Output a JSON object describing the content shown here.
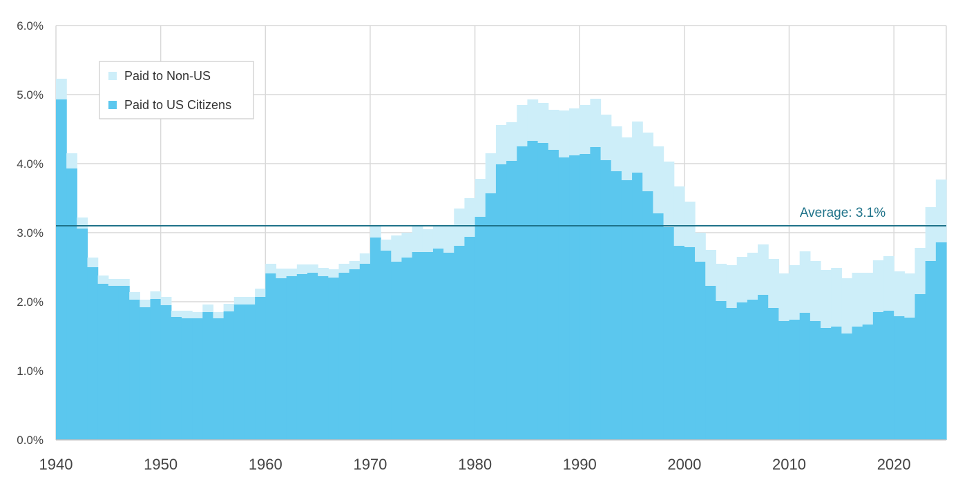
{
  "chart_data": {
    "type": "bar",
    "stacked": true,
    "x": [
      1940,
      1941,
      1942,
      1943,
      1944,
      1945,
      1946,
      1947,
      1948,
      1949,
      1950,
      1951,
      1952,
      1953,
      1954,
      1955,
      1956,
      1957,
      1958,
      1959,
      1960,
      1961,
      1962,
      1963,
      1964,
      1965,
      1966,
      1967,
      1968,
      1969,
      1970,
      1971,
      1972,
      1973,
      1974,
      1975,
      1976,
      1977,
      1978,
      1979,
      1980,
      1981,
      1982,
      1983,
      1984,
      1985,
      1986,
      1987,
      1988,
      1989,
      1990,
      1991,
      1992,
      1993,
      1994,
      1995,
      1996,
      1997,
      1998,
      1999,
      2000,
      2001,
      2002,
      2003,
      2004,
      2005,
      2006,
      2007,
      2008,
      2009,
      2010,
      2011,
      2012,
      2013,
      2014,
      2015,
      2016,
      2017,
      2018,
      2019,
      2020,
      2021,
      2022,
      2023,
      2024
    ],
    "series": [
      {
        "name": "Paid to US Citizens",
        "color": "#5bc7ee",
        "values": [
          4.93,
          3.93,
          3.06,
          2.5,
          2.26,
          2.23,
          2.23,
          2.03,
          1.92,
          2.04,
          1.95,
          1.78,
          1.76,
          1.76,
          1.85,
          1.76,
          1.86,
          1.96,
          1.96,
          2.07,
          2.41,
          2.34,
          2.37,
          2.4,
          2.42,
          2.37,
          2.35,
          2.42,
          2.47,
          2.55,
          2.93,
          2.74,
          2.58,
          2.64,
          2.72,
          2.72,
          2.77,
          2.71,
          2.81,
          2.94,
          3.23,
          3.57,
          3.99,
          4.04,
          4.25,
          4.33,
          4.3,
          4.2,
          4.09,
          4.12,
          4.14,
          4.24,
          4.05,
          3.89,
          3.76,
          3.87,
          3.6,
          3.28,
          3.08,
          2.81,
          2.79,
          2.58,
          2.23,
          2.01,
          1.91,
          1.99,
          2.03,
          2.1,
          1.91,
          1.72,
          1.74,
          1.84,
          1.72,
          1.62,
          1.64,
          1.54,
          1.64,
          1.67,
          1.85,
          1.87,
          1.79,
          1.77,
          2.11,
          2.59,
          2.86
        ]
      },
      {
        "name": "Paid to Non-US",
        "color": "#cdeef9",
        "values": [
          0.3,
          0.22,
          0.16,
          0.14,
          0.12,
          0.1,
          0.1,
          0.11,
          0.11,
          0.11,
          0.12,
          0.09,
          0.11,
          0.09,
          0.11,
          0.09,
          0.11,
          0.11,
          0.11,
          0.12,
          0.14,
          0.14,
          0.11,
          0.14,
          0.12,
          0.12,
          0.12,
          0.13,
          0.12,
          0.15,
          0.16,
          0.16,
          0.38,
          0.36,
          0.38,
          0.33,
          0.34,
          0.38,
          0.54,
          0.56,
          0.55,
          0.58,
          0.57,
          0.56,
          0.6,
          0.6,
          0.58,
          0.58,
          0.68,
          0.68,
          0.71,
          0.7,
          0.66,
          0.65,
          0.62,
          0.74,
          0.85,
          0.97,
          0.95,
          0.86,
          0.66,
          0.42,
          0.52,
          0.54,
          0.62,
          0.66,
          0.68,
          0.73,
          0.71,
          0.69,
          0.79,
          0.89,
          0.87,
          0.84,
          0.85,
          0.8,
          0.78,
          0.75,
          0.75,
          0.79,
          0.65,
          0.64,
          0.67,
          0.78,
          0.91
        ]
      }
    ],
    "average_line": {
      "value": 3.1,
      "label": "Average: 3.1%",
      "color": "#1e7289"
    },
    "ylim": [
      0,
      6
    ],
    "y_ticks": [
      "0.0%",
      "1.0%",
      "2.0%",
      "3.0%",
      "4.0%",
      "5.0%",
      "6.0%"
    ],
    "x_ticks": [
      "1940",
      "1950",
      "1960",
      "1970",
      "1980",
      "1990",
      "2000",
      "2010",
      "2020"
    ],
    "legend": {
      "position": "top-left",
      "items": [
        {
          "label": "Paid to Non-US",
          "color": "#cdeef9"
        },
        {
          "label": "Paid to US Citizens",
          "color": "#5bc7ee"
        }
      ]
    },
    "grid": true,
    "title": "",
    "xlabel": "",
    "ylabel": ""
  }
}
